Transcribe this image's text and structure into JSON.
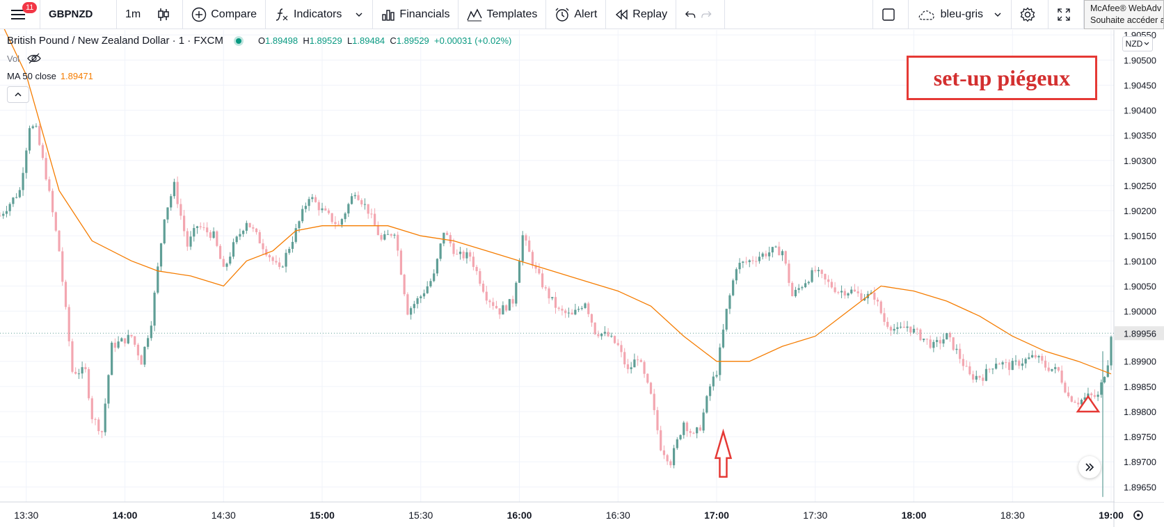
{
  "toolbar": {
    "notification_count": "11",
    "symbol": "GBPNZD",
    "interval": "1m",
    "compare": "Compare",
    "indicators": "Indicators",
    "financials": "Financials",
    "templates": "Templates",
    "alert": "Alert",
    "replay": "Replay",
    "layout_name": "bleu-gris"
  },
  "mcafee_popup": {
    "line1": "McAfee® WebAdv",
    "line2": "Souhaite accéder a"
  },
  "legend": {
    "name": "British Pound / New Zealand Dollar · 1 · FXCM",
    "o_label": "O",
    "o": "1.89498",
    "h_label": "H",
    "h": "1.89529",
    "l_label": "L",
    "l": "1.89484",
    "c_label": "C",
    "c": "1.89529",
    "change": "+0.00031 (+0.02%)",
    "vol": "Vol",
    "ma_label": "MA 50 close",
    "ma_value": "1.89471"
  },
  "currency_button": "NZD",
  "annotation": "set-up piégeux",
  "chart_data": {
    "type": "candlestick",
    "symbol": "GBPNZD",
    "interval": "1m",
    "x_axis": {
      "ticks": [
        "13:30",
        "14:00",
        "14:30",
        "15:00",
        "15:30",
        "16:00",
        "16:30",
        "17:00",
        "17:30",
        "18:00",
        "18:30",
        "19:00"
      ],
      "range": [
        "13:22",
        "19:00"
      ]
    },
    "y_axis": {
      "ticks": [
        "1.90550",
        "1.90500",
        "1.90450",
        "1.90400",
        "1.90350",
        "1.90300",
        "1.90250",
        "1.90200",
        "1.90150",
        "1.90100",
        "1.90050",
        "1.90000",
        "1.89950",
        "1.89900",
        "1.89850",
        "1.89800",
        "1.89750",
        "1.89700",
        "1.89650"
      ],
      "range": [
        1.8962,
        1.9056
      ],
      "current_price_label": "1.89956"
    },
    "colors": {
      "up": "#5f9e96",
      "down": "#f3a6b0",
      "ma": "#f57c00"
    },
    "price_path": [
      [
        "13:22",
        1.9019
      ],
      [
        "13:28",
        1.9024
      ],
      [
        "13:31",
        1.9037
      ],
      [
        "13:33",
        1.9036
      ],
      [
        "13:36",
        1.9027
      ],
      [
        "13:40",
        1.9012
      ],
      [
        "13:44",
        1.8988
      ],
      [
        "13:48",
        1.8988
      ],
      [
        "13:50",
        1.8979
      ],
      [
        "13:53",
        1.8976
      ],
      [
        "13:56",
        1.8993
      ],
      [
        "14:02",
        1.8995
      ],
      [
        "14:05",
        1.899
      ],
      [
        "14:08",
        1.8998
      ],
      [
        "14:12",
        1.9019
      ],
      [
        "14:15",
        1.9025
      ],
      [
        "14:19",
        1.9013
      ],
      [
        "14:22",
        1.9017
      ],
      [
        "14:27",
        1.9015
      ],
      [
        "14:30",
        1.9008
      ],
      [
        "14:33",
        1.9013
      ],
      [
        "14:37",
        1.9018
      ],
      [
        "14:42",
        1.9013
      ],
      [
        "14:47",
        1.9008
      ],
      [
        "14:52",
        1.9016
      ],
      [
        "14:56",
        1.9023
      ],
      [
        "15:00",
        1.902
      ],
      [
        "15:05",
        1.9017
      ],
      [
        "15:10",
        1.9024
      ],
      [
        "15:14",
        1.902
      ],
      [
        "15:18",
        1.9014
      ],
      [
        "15:22",
        1.9016
      ],
      [
        "15:26",
        1.9
      ],
      [
        "15:30",
        1.9003
      ],
      [
        "15:34",
        1.9007
      ],
      [
        "15:37",
        1.9016
      ],
      [
        "15:41",
        1.9011
      ],
      [
        "15:45",
        1.9011
      ],
      [
        "15:50",
        1.9003
      ],
      [
        "15:54",
        1.9
      ],
      [
        "15:58",
        1.9002
      ],
      [
        "16:01",
        1.9015
      ],
      [
        "16:05",
        1.9008
      ],
      [
        "16:08",
        1.9004
      ],
      [
        "16:12",
        1.9
      ],
      [
        "16:16",
        1.8999
      ],
      [
        "16:20",
        1.9002
      ],
      [
        "16:23",
        1.8996
      ],
      [
        "16:27",
        1.8995
      ],
      [
        "16:30",
        1.8993
      ],
      [
        "16:33",
        1.8988
      ],
      [
        "16:36",
        1.8991
      ],
      [
        "16:40",
        1.8983
      ],
      [
        "16:43",
        1.8973
      ],
      [
        "16:46",
        1.897
      ],
      [
        "16:50",
        1.8978
      ],
      [
        "16:53",
        1.8975
      ],
      [
        "16:55",
        1.8977
      ],
      [
        "16:58",
        1.8985
      ],
      [
        "17:00",
        1.8988
      ],
      [
        "17:03",
        1.9
      ],
      [
        "17:06",
        1.9009
      ],
      [
        "17:10",
        1.901
      ],
      [
        "17:13",
        1.9011
      ],
      [
        "17:17",
        1.9012
      ],
      [
        "17:20",
        1.9012
      ],
      [
        "17:23",
        1.9003
      ],
      [
        "17:27",
        1.9006
      ],
      [
        "17:30",
        1.9008
      ],
      [
        "17:33",
        1.9006
      ],
      [
        "17:37",
        1.9004
      ],
      [
        "17:41",
        1.9004
      ],
      [
        "17:44",
        1.9003
      ],
      [
        "17:48",
        1.9003
      ],
      [
        "17:51",
        1.8998
      ],
      [
        "17:55",
        1.8996
      ],
      [
        "17:58",
        1.8997
      ],
      [
        "18:02",
        1.8995
      ],
      [
        "18:06",
        1.8993
      ],
      [
        "18:10",
        1.8995
      ],
      [
        "18:13",
        1.8992
      ],
      [
        "18:17",
        1.8987
      ],
      [
        "18:21",
        1.8987
      ],
      [
        "18:25",
        1.899
      ],
      [
        "18:29",
        1.8989
      ],
      [
        "18:33",
        1.899
      ],
      [
        "18:37",
        1.8991
      ],
      [
        "18:40",
        1.8989
      ],
      [
        "18:44",
        1.8988
      ],
      [
        "18:47",
        1.8983
      ],
      [
        "18:50",
        1.8982
      ],
      [
        "18:53",
        1.8983
      ],
      [
        "18:56",
        1.8983
      ],
      [
        "18:59",
        1.899
      ],
      [
        "19:00",
        1.89956
      ]
    ],
    "ma_50": [
      [
        "13:22",
        1.9058
      ],
      [
        "13:30",
        1.9047
      ],
      [
        "13:40",
        1.9024
      ],
      [
        "13:50",
        1.9014
      ],
      [
        "14:02",
        1.901
      ],
      [
        "14:10",
        1.9008
      ],
      [
        "14:20",
        1.9007
      ],
      [
        "14:30",
        1.9005
      ],
      [
        "14:37",
        1.901
      ],
      [
        "14:45",
        1.9012
      ],
      [
        "14:52",
        1.9016
      ],
      [
        "15:00",
        1.9017
      ],
      [
        "15:10",
        1.9017
      ],
      [
        "15:20",
        1.9017
      ],
      [
        "15:30",
        1.9015
      ],
      [
        "15:40",
        1.9014
      ],
      [
        "15:50",
        1.9012
      ],
      [
        "16:00",
        1.901
      ],
      [
        "16:10",
        1.9008
      ],
      [
        "16:20",
        1.9006
      ],
      [
        "16:30",
        1.9004
      ],
      [
        "16:40",
        1.9001
      ],
      [
        "16:50",
        1.8995
      ],
      [
        "17:00",
        1.899
      ],
      [
        "17:10",
        1.899
      ],
      [
        "17:20",
        1.8993
      ],
      [
        "17:30",
        1.8995
      ],
      [
        "17:40",
        1.9
      ],
      [
        "17:50",
        1.9005
      ],
      [
        "18:00",
        1.9004
      ],
      [
        "18:10",
        1.9002
      ],
      [
        "18:20",
        1.8999
      ],
      [
        "18:30",
        1.8995
      ],
      [
        "18:40",
        1.8992
      ],
      [
        "18:50",
        1.899
      ],
      [
        "19:00",
        1.89875
      ]
    ],
    "markers": [
      {
        "kind": "up-arrow",
        "time": "17:02",
        "price_top": 1.8976,
        "price_bottom": 1.8967
      },
      {
        "kind": "triangle",
        "time": "18:53",
        "price_top": 1.8983,
        "price_bottom": 1.898
      }
    ]
  }
}
